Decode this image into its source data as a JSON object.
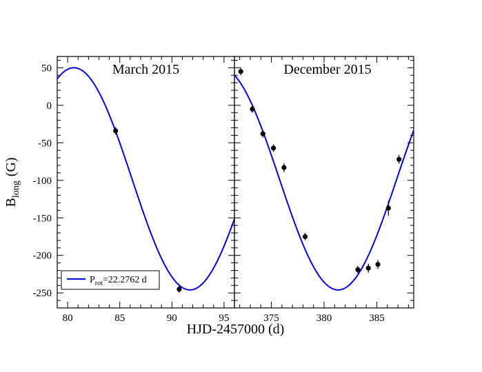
{
  "chart_data": {
    "type": "scatter",
    "xlabel": "HJD-2457000 (d)",
    "ylabel_main": "B",
    "ylabel_sub": "long",
    "ylabel_unit": "(G)",
    "ylim": [
      -270,
      65
    ],
    "yticks": [
      50,
      0,
      -50,
      -100,
      -150,
      -200,
      -250
    ],
    "yticklabels": [
      "50",
      "0",
      "-50",
      "-100",
      "-150",
      "-200",
      "-250"
    ],
    "model": {
      "color": "#0000dd",
      "amplitude": 148,
      "offset": -98,
      "period": 22.2762,
      "phase_zero": 80.6,
      "legend_main": "P",
      "legend_sub": "rot",
      "legend_value": "=22.2762 d",
      "legend_position": "bottom-left"
    },
    "panels": [
      {
        "title": "March 2015",
        "xlim": [
          79,
          96
        ],
        "xticks": [
          80,
          85,
          90,
          95
        ],
        "xticklabels": [
          "80",
          "85",
          "90",
          "95"
        ],
        "points": [
          {
            "x": 84.6,
            "y": -34,
            "err": 5
          },
          {
            "x": 90.7,
            "y": -245,
            "err": 5
          }
        ]
      },
      {
        "title": "December 2015",
        "xlim": [
          371.5,
          388.5
        ],
        "xticks": [
          375,
          380,
          385
        ],
        "xticklabels": [
          "375",
          "380",
          "385"
        ],
        "points": [
          {
            "x": 372.1,
            "y": 45,
            "err": 5
          },
          {
            "x": 373.2,
            "y": -5,
            "err": 5
          },
          {
            "x": 374.2,
            "y": -38,
            "err": 5
          },
          {
            "x": 375.2,
            "y": -57,
            "err": 5
          },
          {
            "x": 376.2,
            "y": -83,
            "err": 6
          },
          {
            "x": 378.2,
            "y": -175,
            "err": 5
          },
          {
            "x": 383.2,
            "y": -219,
            "err": 5
          },
          {
            "x": 384.2,
            "y": -217,
            "err": 6
          },
          {
            "x": 385.1,
            "y": -212,
            "err": 6
          },
          {
            "x": 386.1,
            "y": -137,
            "err": 10
          },
          {
            "x": 387.1,
            "y": -72,
            "err": 6
          }
        ]
      }
    ]
  }
}
